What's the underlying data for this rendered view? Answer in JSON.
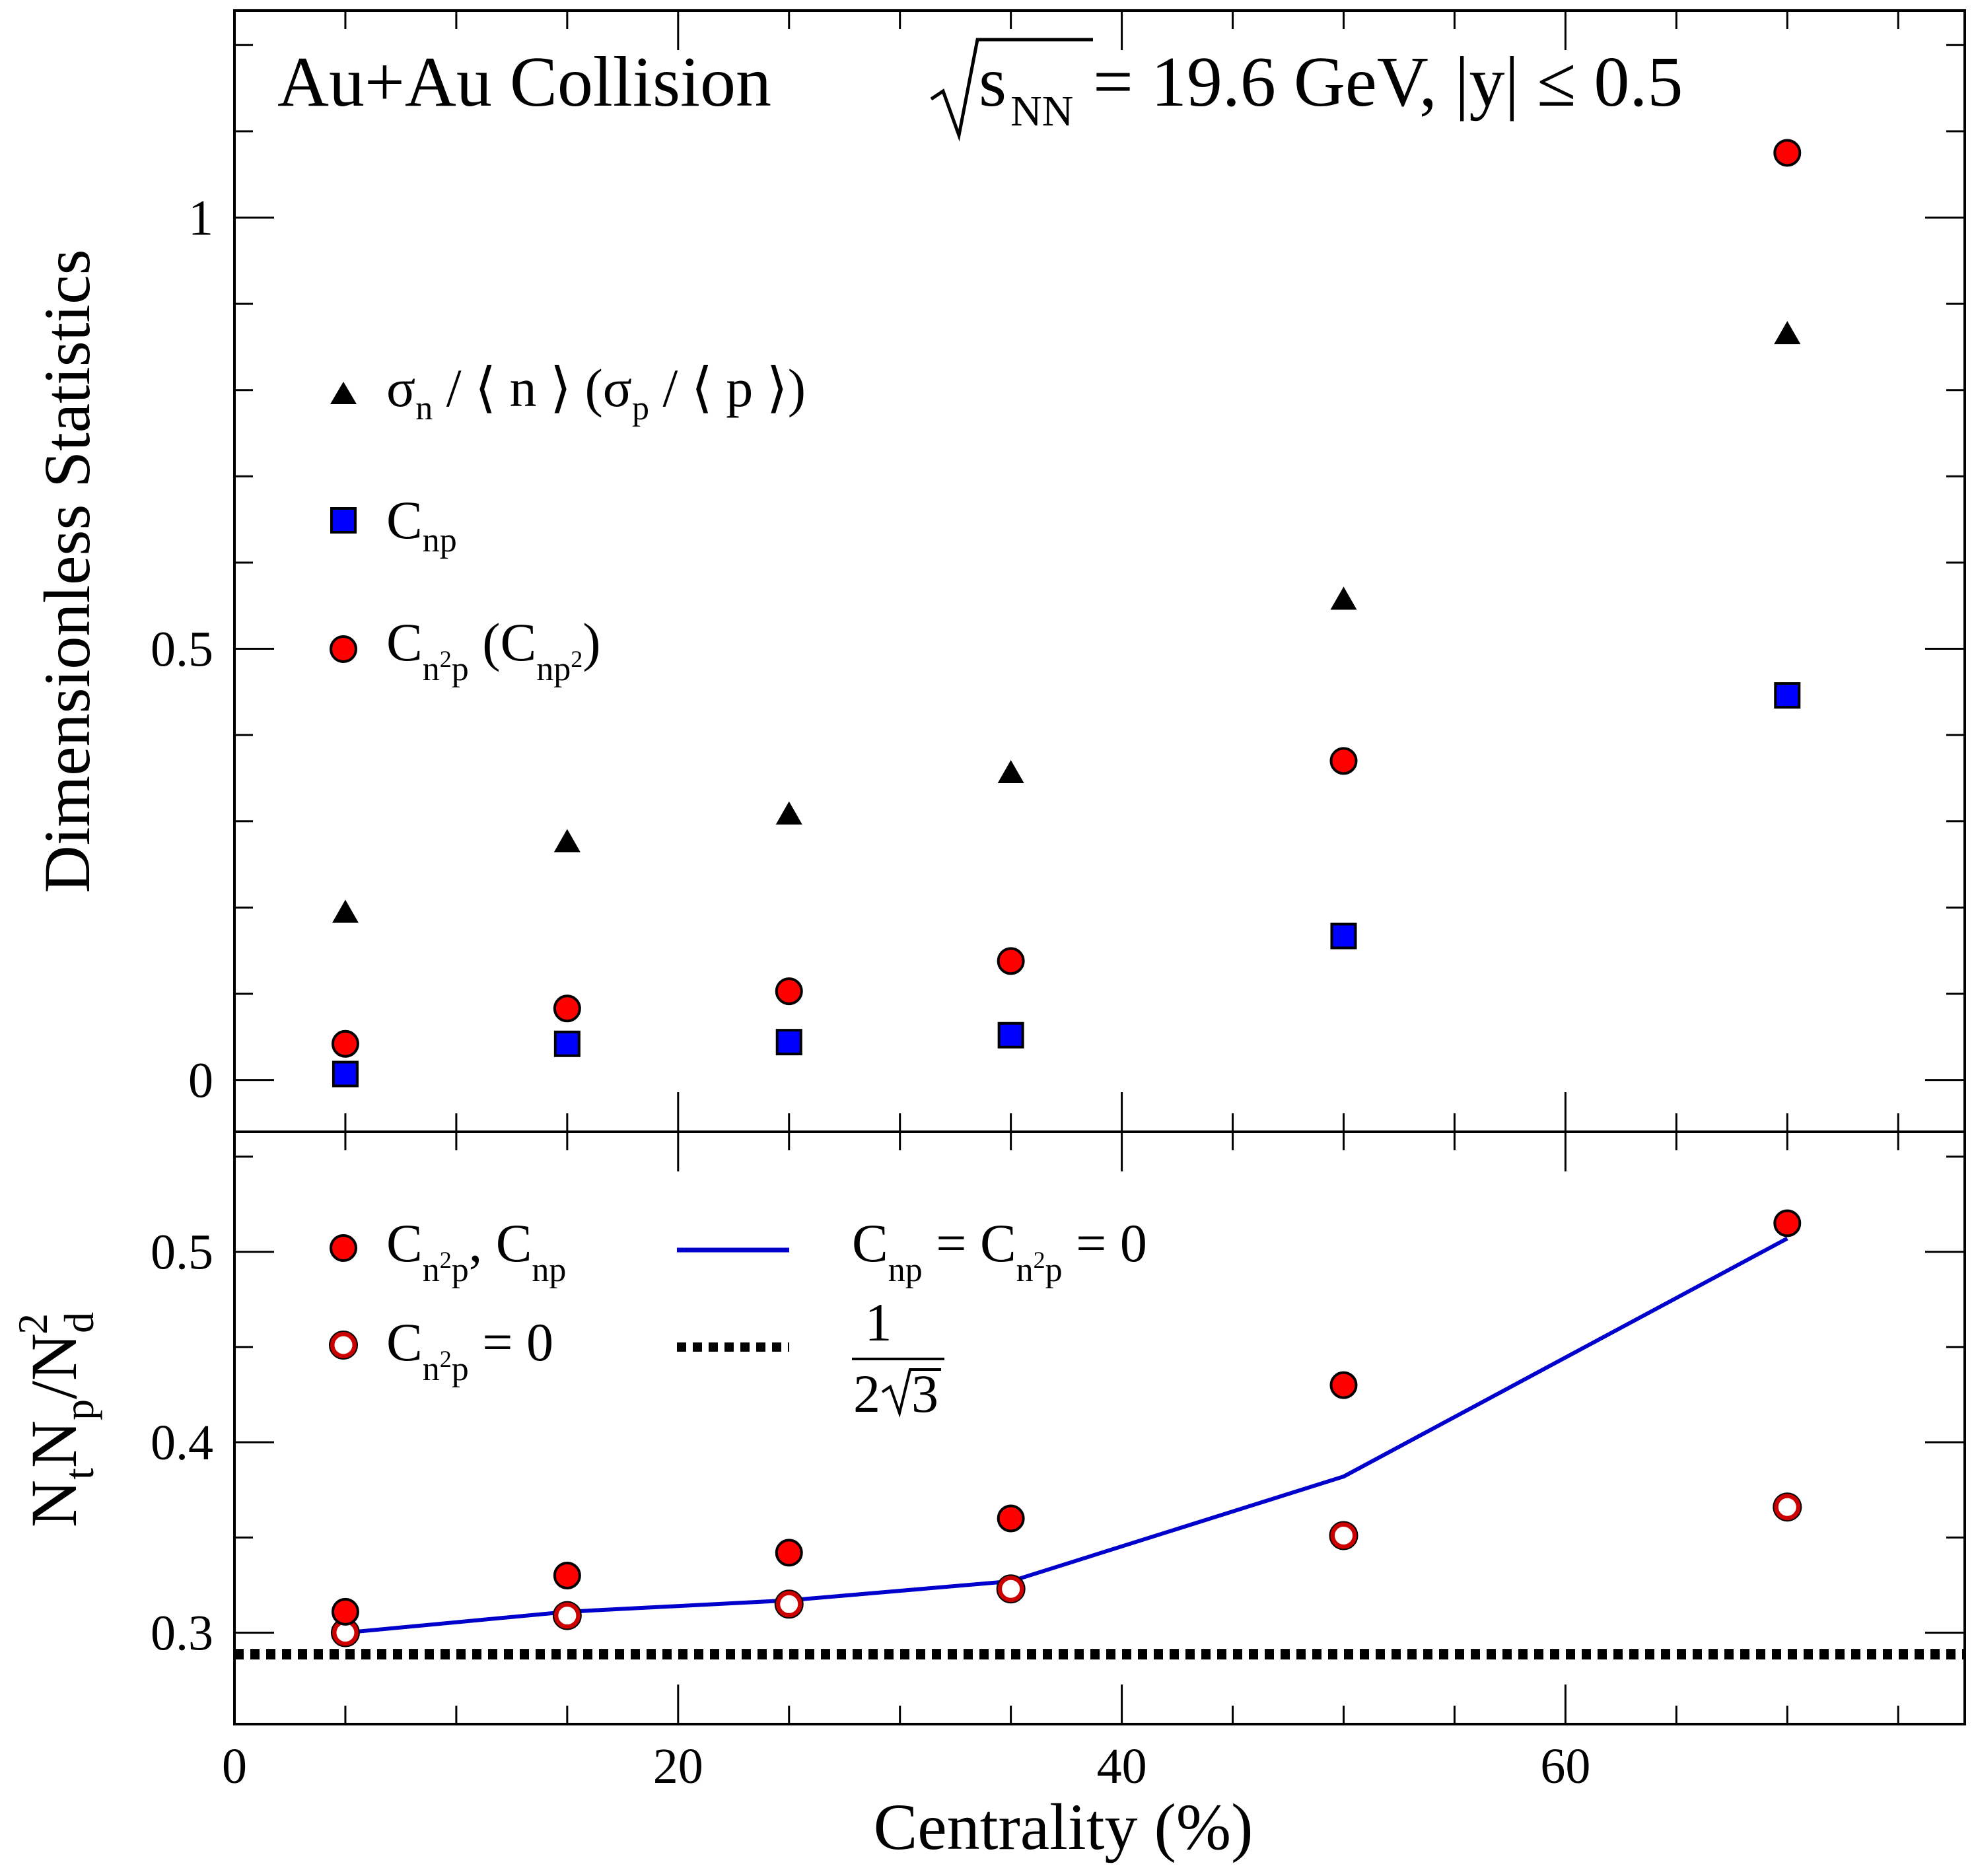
{
  "chart_data": [
    {
      "type": "scatter",
      "title_parts": [
        "Au+Au Collision ",
        "s",
        "NN",
        " = 19.6 GeV, |y| ≤ 0.5"
      ],
      "xlabel": "",
      "ylabel": "Dimensionless Statistics",
      "xlim": [
        0,
        78
      ],
      "ylim": [
        -0.06,
        1.24
      ],
      "x_ticks": [
        0,
        20,
        40,
        60
      ],
      "y_ticks": [
        0,
        0.5,
        1
      ],
      "y_tick_labels": [
        "0",
        "0.5",
        "1"
      ],
      "grid": false,
      "legend_position": "left",
      "x": [
        5,
        15,
        25,
        35,
        50,
        70
      ],
      "series": [
        {
          "key": "sigma",
          "marker": "triangle",
          "color": "#000000",
          "values": [
            0.193,
            0.275,
            0.307,
            0.355,
            0.556,
            0.864
          ]
        },
        {
          "key": "cnp",
          "marker": "square",
          "color": "#0000ff",
          "values": [
            0.007,
            0.042,
            0.044,
            0.052,
            0.167,
            0.446
          ]
        },
        {
          "key": "cn2p",
          "marker": "circle",
          "color": "#ff0000",
          "values": [
            0.042,
            0.083,
            0.103,
            0.138,
            0.37,
            1.075
          ]
        }
      ],
      "legend": [
        {
          "key": "sigma",
          "main": "σ",
          "sub": "n",
          "text1": " / ⟨ n ⟩  (σ",
          "sub2": "p",
          "text2": " / ⟨ p ⟩)"
        },
        {
          "key": "cnp",
          "main": "C",
          "sub": "np"
        },
        {
          "key": "cn2p",
          "main": "C",
          "sub": "n",
          "sup": "2",
          "sub_tail": "p",
          "text1": "  (C",
          "sub2": "np",
          "sup2": "2",
          "text2": ")"
        }
      ]
    },
    {
      "type": "scatter",
      "xlabel": "Centrality (%)",
      "ylabel_parts": [
        "N",
        "t",
        "N",
        "p",
        "/N",
        "d",
        "2"
      ],
      "xlim": [
        0,
        78
      ],
      "ylim": [
        0.252,
        0.563
      ],
      "x_ticks": [
        0,
        20,
        40,
        60
      ],
      "x_tick_labels": [
        "0",
        "20",
        "40",
        "60"
      ],
      "y_ticks": [
        0.3,
        0.4,
        0.5
      ],
      "y_tick_labels": [
        "0.3",
        "0.4",
        "0.5"
      ],
      "grid": false,
      "legend_position": "top-left",
      "x": [
        5,
        15,
        25,
        35,
        50,
        70
      ],
      "series": [
        {
          "key": "filled",
          "marker": "circle-filled",
          "color": "#ff0000",
          "values": [
            0.311,
            0.33,
            0.342,
            0.36,
            0.43,
            0.515
          ]
        },
        {
          "key": "open",
          "marker": "circle-open",
          "color": "#ff0000",
          "values": [
            0.3,
            0.309,
            0.315,
            0.323,
            0.351,
            0.366
          ]
        },
        {
          "key": "line",
          "marker": "line",
          "color": "#0000cc",
          "values": [
            0.3,
            0.311,
            0.317,
            0.327,
            0.382,
            0.507
          ]
        },
        {
          "key": "const",
          "marker": "dotted-line",
          "color": "#000000",
          "values": [
            0.2887,
            0.2887
          ]
        }
      ],
      "legend": [
        {
          "key": "filled",
          "main": "C",
          "sub": "n",
          "sup": "2",
          "sub_tail": "p",
          "text1": ", C",
          "sub2": "np"
        },
        {
          "key": "open",
          "main": "C",
          "sub": "n",
          "sup": "2",
          "sub_tail": "p",
          "text1": " = 0"
        },
        {
          "key": "line",
          "main": "C",
          "sub": "np",
          "text1": " = C",
          "sub2": "n",
          "sup2": "2",
          "sub2_tail": "p",
          "text2": " = 0"
        },
        {
          "key": "const",
          "numerator": "1",
          "denominator_prefix": "2",
          "denominator_radicand": "3"
        }
      ]
    }
  ]
}
